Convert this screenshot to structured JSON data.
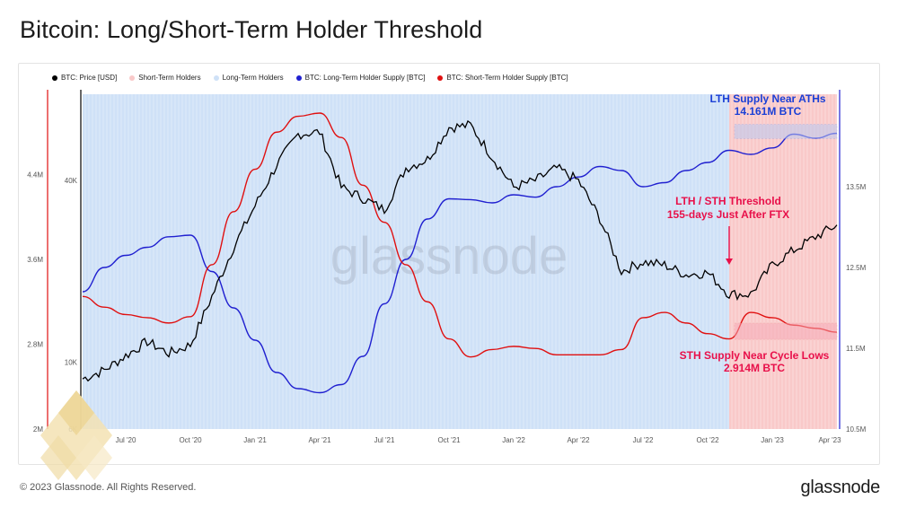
{
  "title": "Bitcoin: Long/Short-Term Holder Threshold",
  "footer": {
    "copyright": "© 2023 Glassnode. All Rights Reserved.",
    "brand": "glassnode"
  },
  "watermark": "glassnode",
  "colors": {
    "price": "#000000",
    "sth_area": "#f9c9c9",
    "lth_area": "#cfe1f7",
    "lth_supply": "#2020d0",
    "sth_supply": "#e01010",
    "annotation_blue": "#1a3fd6",
    "annotation_red": "#e8104a"
  },
  "legend": [
    {
      "label": "BTC: Price [USD]",
      "color": "#000000"
    },
    {
      "label": "Short-Term Holders",
      "color": "#f9c9c9"
    },
    {
      "label": "Long-Term Holders",
      "color": "#cfe1f7"
    },
    {
      "label": "BTC: Long-Term Holder Supply [BTC]",
      "color": "#2020d0"
    },
    {
      "label": "BTC: Short-Term Holder Supply [BTC]",
      "color": "#e01010"
    }
  ],
  "annotations": {
    "lth_line1": "LTH Supply Near ATHs",
    "lth_line2": "14.161M BTC",
    "threshold_line1": "LTH / STH Threshold",
    "threshold_line2": "155-days Just After FTX",
    "sth_line1": "STH Supply Near Cycle Lows",
    "sth_line2": "2.914M BTC"
  },
  "chart_data": {
    "type": "line",
    "title": "Bitcoin: Long/Short-Term Holder Threshold",
    "x_ticks": [
      "Jul '20",
      "Oct '20",
      "Jan '21",
      "Apr '21",
      "Jul '21",
      "Oct '21",
      "Jan '22",
      "Apr '22",
      "Jul '22",
      "Oct '22",
      "Jan '23",
      "Apr '23"
    ],
    "x": [
      "2020-05",
      "2020-06",
      "2020-07",
      "2020-08",
      "2020-09",
      "2020-10",
      "2020-11",
      "2020-12",
      "2021-01",
      "2021-02",
      "2021-03",
      "2021-04",
      "2021-05",
      "2021-06",
      "2021-07",
      "2021-08",
      "2021-09",
      "2021-10",
      "2021-11",
      "2021-12",
      "2022-01",
      "2022-02",
      "2022-03",
      "2022-04",
      "2022-05",
      "2022-06",
      "2022-07",
      "2022-08",
      "2022-09",
      "2022-10",
      "2022-11",
      "2022-12",
      "2023-01",
      "2023-02",
      "2023-03",
      "2023-04"
    ],
    "left_axis_ticks": [
      "2M",
      "2.8M",
      "3.6M",
      "4.4M"
    ],
    "price_axis_ticks": [
      "6K",
      "10K",
      "40K"
    ],
    "right_axis_ticks": [
      "10.5M",
      "11.5M",
      "12.5M",
      "13.5M"
    ],
    "price_scale": "log",
    "series": [
      {
        "name": "BTC: Price [USD]",
        "axis": "price",
        "values": [
          8800,
          9400,
          10500,
          11700,
          10700,
          11400,
          16500,
          24000,
          33000,
          45000,
          57000,
          58000,
          38000,
          35000,
          32000,
          44000,
          47000,
          60000,
          61000,
          48000,
          38000,
          40000,
          44000,
          40000,
          30000,
          20000,
          21500,
          21000,
          19500,
          19800,
          16800,
          16800,
          21000,
          23500,
          26000,
          28500
        ]
      },
      {
        "name": "BTC: Long-Term Holder Supply [BTC]",
        "axis": "right",
        "values": [
          12200,
          12500,
          12650,
          12750,
          12880,
          12900,
          12450,
          12000,
          11600,
          11200,
          11000,
          10950,
          11050,
          11400,
          12050,
          12600,
          13100,
          13350,
          13340,
          13300,
          13400,
          13370,
          13500,
          13620,
          13750,
          13700,
          13500,
          13550,
          13700,
          13800,
          13950,
          13900,
          13980,
          14150,
          14100,
          14161
        ]
      },
      {
        "name": "BTC: Short-Term Holder Supply [BTC]",
        "axis": "left",
        "values": [
          3.25,
          3.15,
          3.08,
          3.05,
          3.0,
          3.06,
          3.55,
          4.05,
          4.45,
          4.8,
          4.95,
          4.98,
          4.75,
          4.3,
          3.95,
          3.55,
          3.2,
          2.85,
          2.68,
          2.75,
          2.78,
          2.76,
          2.7,
          2.7,
          2.7,
          2.75,
          3.05,
          3.1,
          3.0,
          2.9,
          2.85,
          3.1,
          3.05,
          2.98,
          2.95,
          2.914
        ]
      }
    ],
    "threshold_index": 30,
    "left_ylim": [
      2.0,
      5.2
    ],
    "right_ylim": [
      10.5,
      14.7
    ],
    "price_ylim": [
      6000,
      80000
    ],
    "grid": false,
    "legend_position": "top-left"
  }
}
